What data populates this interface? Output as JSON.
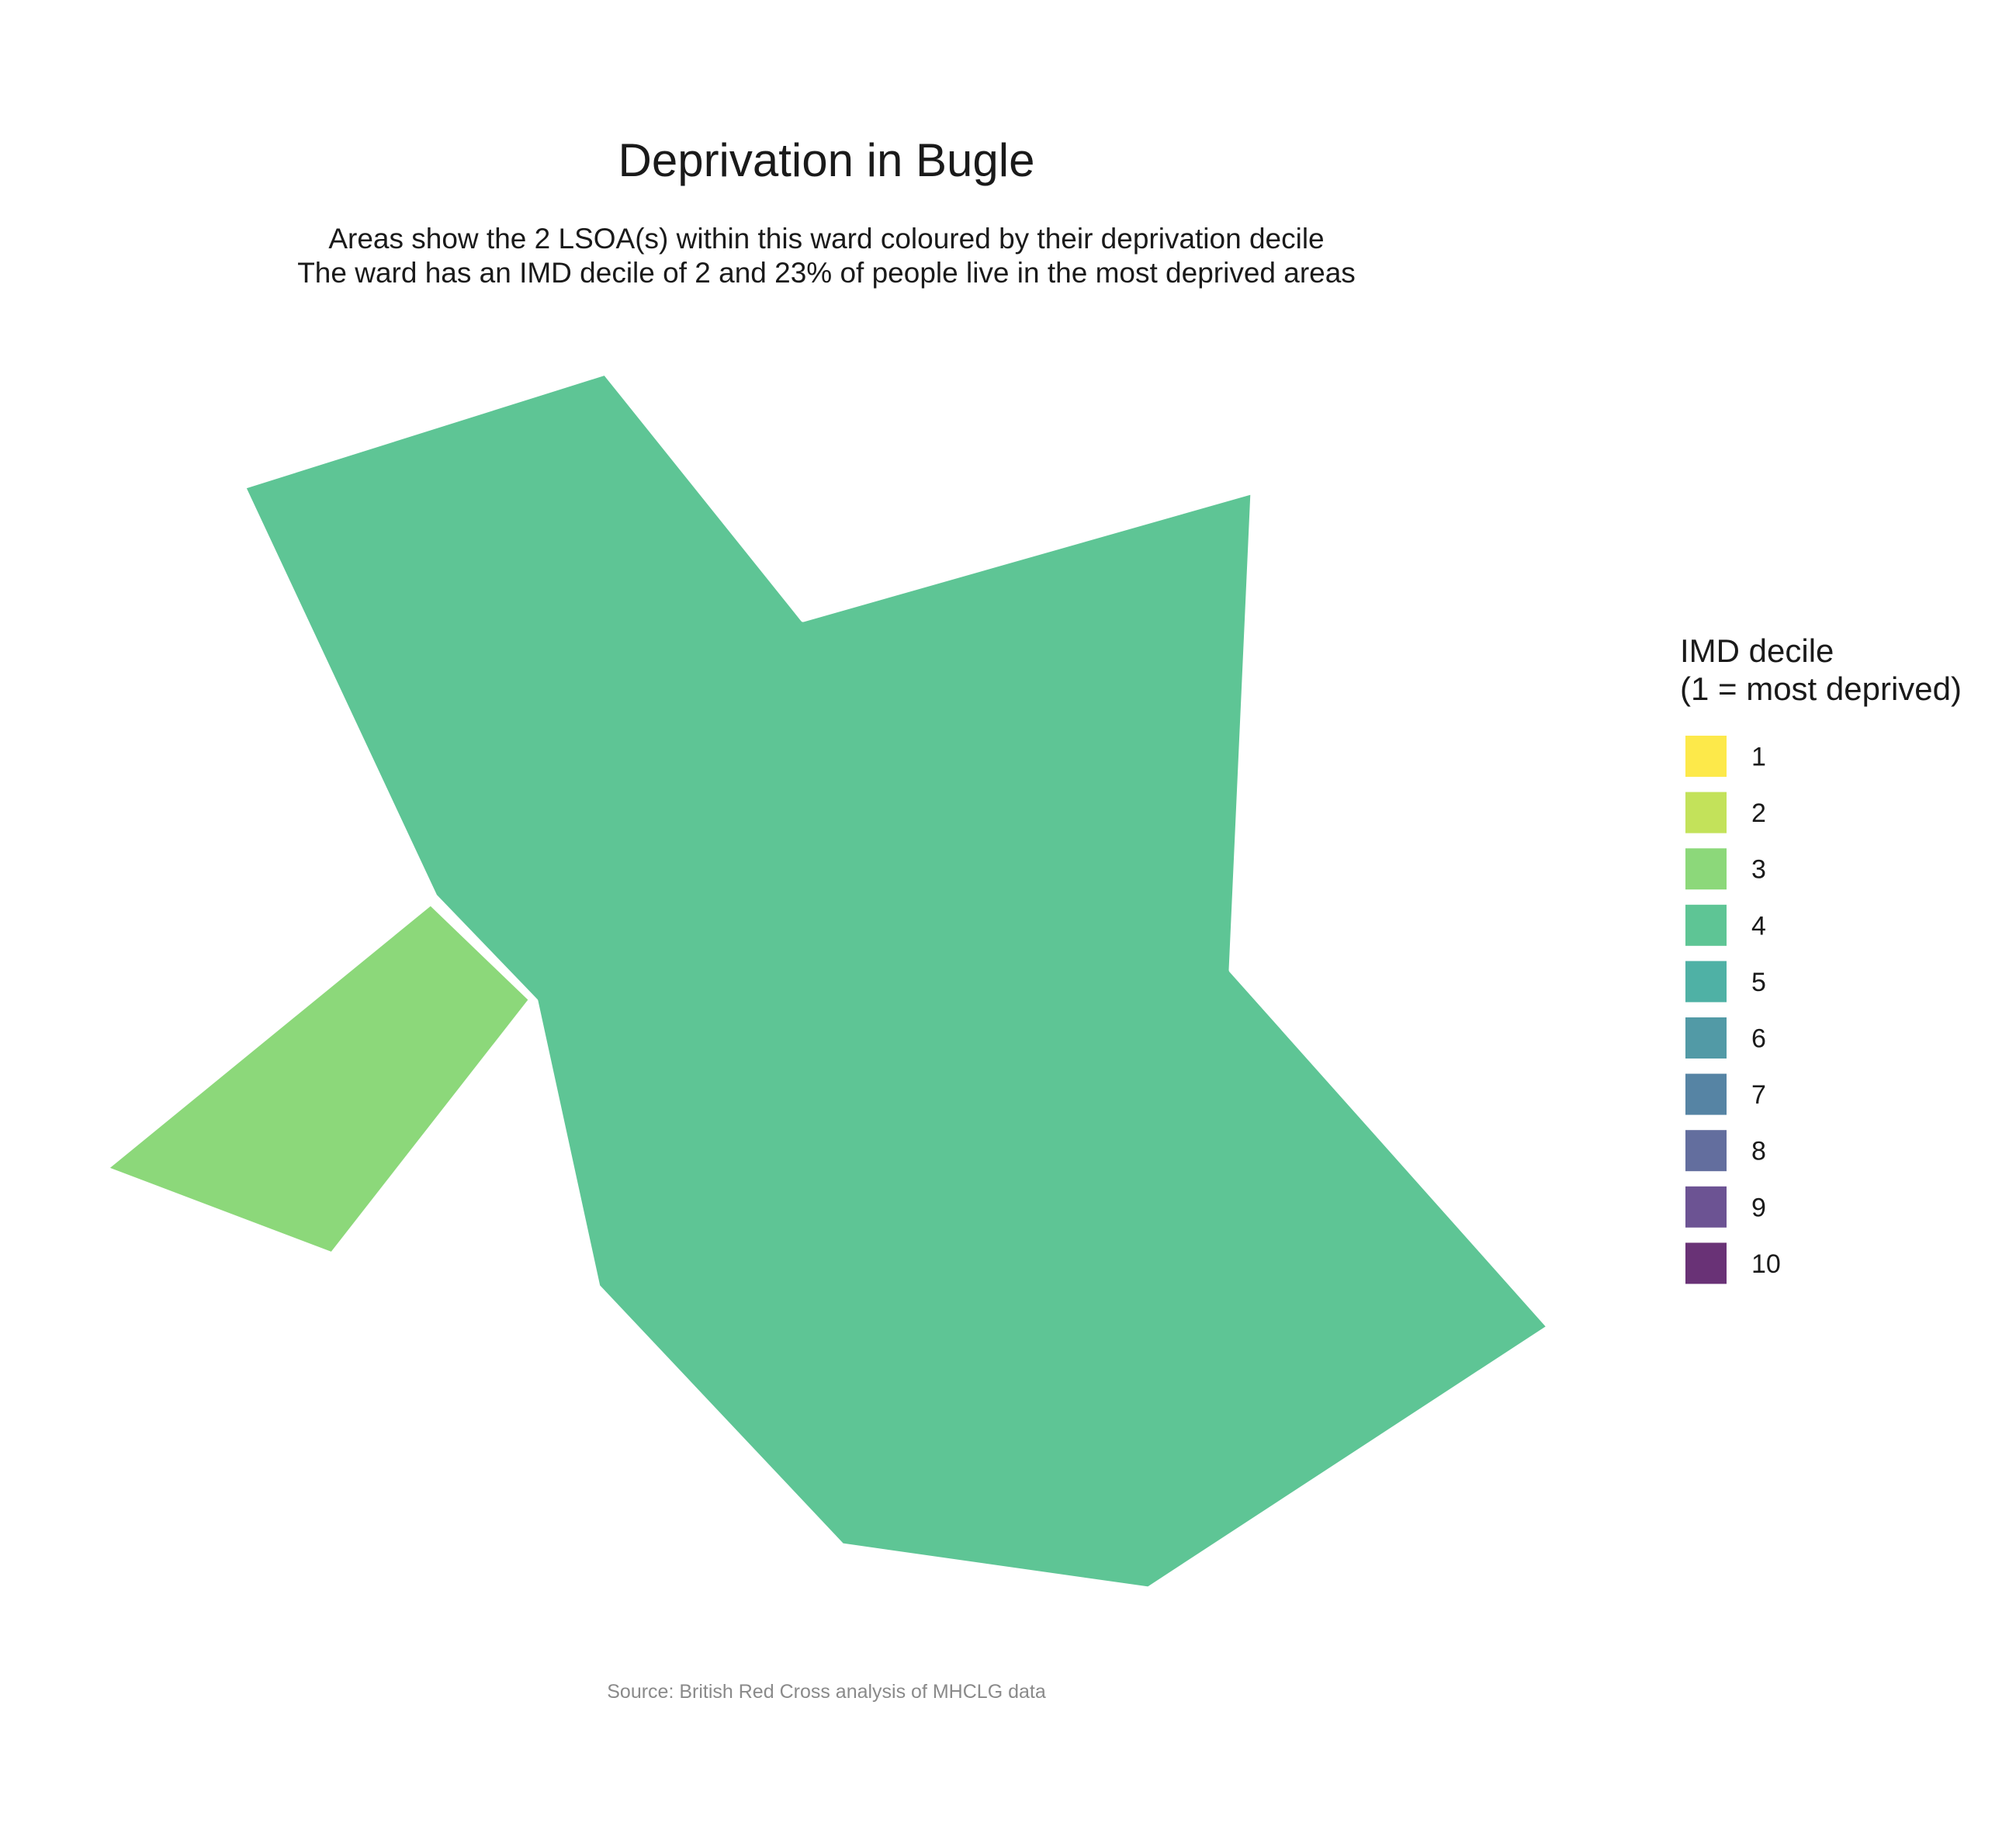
{
  "chart_data": {
    "type": "choropleth",
    "title": "Deprivation in Bugle",
    "subtitle_lines": [
      "Areas show the 2 LSOA(s) within this ward coloured by their deprivation decile",
      "The ward has an IMD decile of 2 and 23% of people live in the most deprived areas"
    ],
    "caption": "Source: British Red Cross analysis of MHCLG data",
    "legend": {
      "title_lines": [
        "IMD decile",
        "(1 = most deprived)"
      ],
      "placement": "right",
      "items": [
        {
          "label": "1",
          "color": "#FDE94A"
        },
        {
          "label": "2",
          "color": "#C3E25A"
        },
        {
          "label": "3",
          "color": "#8CD87A"
        },
        {
          "label": "4",
          "color": "#5EC595"
        },
        {
          "label": "5",
          "color": "#4FB1A5"
        },
        {
          "label": "6",
          "color": "#529AA6"
        },
        {
          "label": "7",
          "color": "#5684A4"
        },
        {
          "label": "8",
          "color": "#636E9E"
        },
        {
          "label": "9",
          "color": "#6C5393"
        },
        {
          "label": "10",
          "color": "#693276"
        }
      ]
    },
    "areas": [
      {
        "decile": 4,
        "color": "#5EC595"
      },
      {
        "decile": 3,
        "color": "#8CD87A"
      }
    ]
  }
}
